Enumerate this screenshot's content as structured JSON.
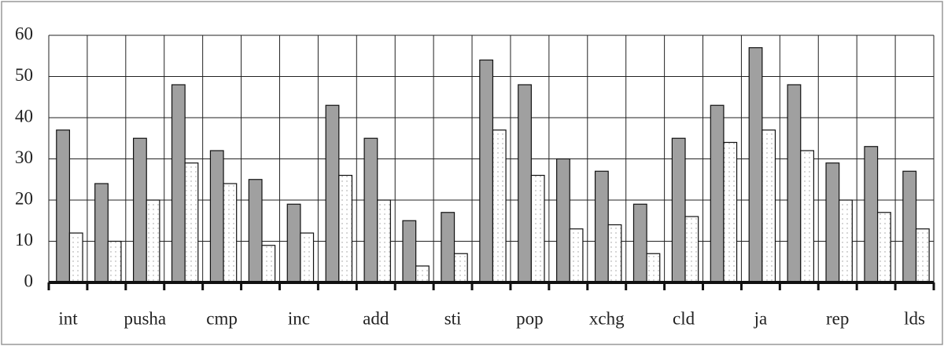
{
  "chart_data": {
    "type": "bar",
    "categories": [
      "int",
      null,
      "pusha",
      null,
      "cmp",
      null,
      "inc",
      null,
      "add",
      null,
      "sti",
      null,
      "pop",
      null,
      "xchg",
      null,
      "cld",
      null,
      "ja",
      null,
      "rep",
      null,
      "lds"
    ],
    "series": [
      {
        "color": "#a0a0a0",
        "values": [
          37,
          24,
          35,
          48,
          32,
          25,
          19,
          43,
          35,
          15,
          17,
          54,
          48,
          30,
          27,
          19,
          35,
          43,
          57,
          48,
          29,
          33,
          27
        ]
      },
      {
        "color": "#ffffff",
        "pattern": "dotted",
        "values": [
          12,
          10,
          20,
          29,
          24,
          9,
          12,
          26,
          20,
          4,
          7,
          37,
          26,
          13,
          14,
          7,
          16,
          34,
          37,
          32,
          20,
          17,
          13
        ]
      }
    ],
    "ylim": [
      0,
      60
    ],
    "yticks": [
      0,
      10,
      20,
      30,
      40,
      50,
      60
    ],
    "grid": true
  }
}
